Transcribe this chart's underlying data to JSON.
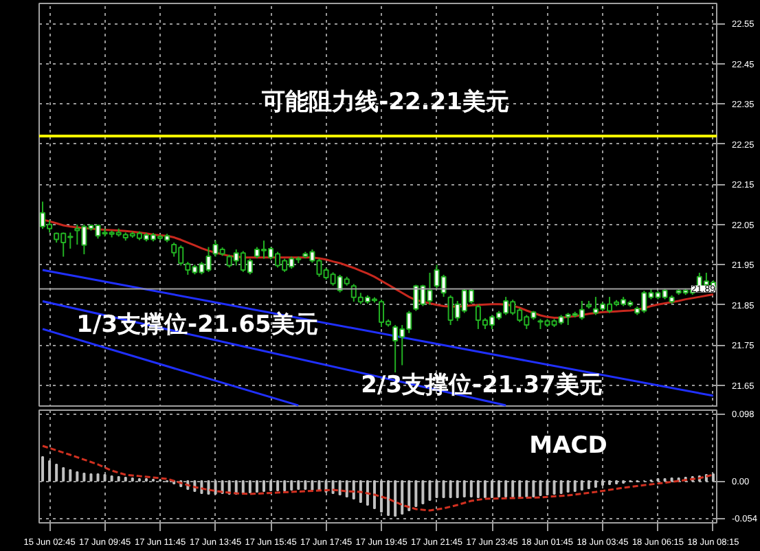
{
  "chart_data": [
    {
      "type": "candlestick",
      "ohlc": [
        [
          22.045,
          22.107,
          22.039,
          22.079
        ],
        [
          22.05,
          22.06,
          22.03,
          22.04
        ],
        [
          22.028,
          22.03,
          22.005,
          22.013
        ],
        [
          22.028,
          22.03,
          21.97,
          22.005
        ],
        [
          22.02,
          22.03,
          21.99,
          22.018
        ],
        [
          22.04,
          22.05,
          22.0,
          22.035
        ],
        [
          21.999,
          22.05,
          21.976,
          22.045
        ],
        [
          22.04,
          22.05,
          22.035,
          22.048
        ],
        [
          22.022,
          22.05,
          22.015,
          22.048
        ],
        [
          22.03,
          22.04,
          22.02,
          22.027
        ],
        [
          22.03,
          22.035,
          22.018,
          22.026
        ],
        [
          22.03,
          22.04,
          22.02,
          22.025
        ],
        [
          22.025,
          22.03,
          22.01,
          22.017
        ],
        [
          22.027,
          22.032,
          22.017,
          22.022
        ],
        [
          22.028,
          22.033,
          22.011,
          22.016
        ],
        [
          22.013,
          22.029,
          22.008,
          22.024
        ],
        [
          22.013,
          22.029,
          22.008,
          22.024
        ],
        [
          22.02,
          22.025,
          22.011,
          22.016
        ],
        [
          22.011,
          22.027,
          22.006,
          22.022
        ],
        [
          22.0,
          22.005,
          21.97,
          21.98
        ],
        [
          21.993,
          21.998,
          21.948,
          21.954
        ],
        [
          21.952,
          21.957,
          21.925,
          21.937
        ],
        [
          21.931,
          21.95,
          21.926,
          21.945
        ],
        [
          21.931,
          21.957,
          21.926,
          21.952
        ],
        [
          21.937,
          21.994,
          21.932,
          21.971
        ],
        [
          21.977,
          22.01,
          21.97,
          22.0
        ],
        [
          21.988,
          21.993,
          21.972,
          21.977
        ],
        [
          21.97,
          21.975,
          21.943,
          21.948
        ],
        [
          21.96,
          21.988,
          21.948,
          21.979
        ],
        [
          21.979,
          21.984,
          21.932,
          21.937
        ],
        [
          21.931,
          21.965,
          21.926,
          21.96
        ],
        [
          21.971,
          21.994,
          21.966,
          21.988
        ],
        [
          21.988,
          22.01,
          21.965,
          21.985
        ],
        [
          21.968,
          21.994,
          21.963,
          21.99
        ],
        [
          21.977,
          21.982,
          21.943,
          21.948
        ],
        [
          21.96,
          21.965,
          21.932,
          21.937
        ],
        [
          21.945,
          21.97,
          21.94,
          21.965
        ],
        [
          21.965,
          21.97,
          21.954,
          21.963
        ],
        [
          21.971,
          21.982,
          21.966,
          21.977
        ],
        [
          21.96,
          21.988,
          21.955,
          21.982
        ],
        [
          21.96,
          21.965,
          21.92,
          21.926
        ],
        [
          21.937,
          21.942,
          21.913,
          21.918
        ],
        [
          21.926,
          21.931,
          21.898,
          21.903
        ],
        [
          21.886,
          21.925,
          21.881,
          21.92
        ],
        [
          21.914,
          21.92,
          21.898,
          21.903
        ],
        [
          21.897,
          21.902,
          21.858,
          21.869
        ],
        [
          21.869,
          21.88,
          21.852,
          21.858
        ],
        [
          21.858,
          21.874,
          21.853,
          21.869
        ],
        [
          21.864,
          21.869,
          21.856,
          21.861
        ],
        [
          21.858,
          21.863,
          21.795,
          21.807
        ],
        [
          21.809,
          21.814,
          21.796,
          21.801
        ],
        [
          21.761,
          21.8,
          21.682,
          21.795
        ],
        [
          21.77,
          21.8,
          21.7,
          21.79
        ],
        [
          21.79,
          21.835,
          21.78,
          21.83
        ],
        [
          21.84,
          21.9,
          21.835,
          21.897
        ],
        [
          21.852,
          21.9,
          21.847,
          21.897
        ],
        [
          21.86,
          21.93,
          21.85,
          21.886
        ],
        [
          21.897,
          21.95,
          21.89,
          21.937
        ],
        [
          21.88,
          21.925,
          21.87,
          21.92
        ],
        [
          21.869,
          21.874,
          21.8,
          21.812
        ],
        [
          21.818,
          21.86,
          21.81,
          21.852
        ],
        [
          21.835,
          21.89,
          21.83,
          21.886
        ],
        [
          21.858,
          21.89,
          21.853,
          21.886
        ],
        [
          21.846,
          21.851,
          21.79,
          21.812
        ],
        [
          21.812,
          21.817,
          21.79,
          21.8
        ],
        [
          21.8,
          21.825,
          21.79,
          21.82
        ],
        [
          21.818,
          21.835,
          21.813,
          21.83
        ],
        [
          21.83,
          21.87,
          21.825,
          21.86
        ],
        [
          21.858,
          21.863,
          21.825,
          21.83
        ],
        [
          21.837,
          21.842,
          21.807,
          21.812
        ],
        [
          21.82,
          21.825,
          21.79,
          21.8
        ],
        [
          21.818,
          21.835,
          21.813,
          21.832
        ],
        [
          21.81,
          21.815,
          21.79,
          21.808
        ],
        [
          21.81,
          21.815,
          21.795,
          21.8
        ],
        [
          21.81,
          21.815,
          21.795,
          21.8
        ],
        [
          21.806,
          21.825,
          21.801,
          21.82
        ],
        [
          21.82,
          21.83,
          21.8,
          21.826
        ],
        [
          21.824,
          21.833,
          21.819,
          21.828
        ],
        [
          21.818,
          21.86,
          21.813,
          21.838
        ],
        [
          21.85,
          21.86,
          21.841,
          21.846
        ],
        [
          21.83,
          21.87,
          21.825,
          21.84
        ],
        [
          21.84,
          21.857,
          21.835,
          21.852
        ],
        [
          21.852,
          21.87,
          21.83,
          21.835
        ],
        [
          21.857,
          21.862,
          21.847,
          21.852
        ],
        [
          21.852,
          21.87,
          21.847,
          21.863
        ],
        [
          21.85,
          21.861,
          21.845,
          21.856
        ],
        [
          21.83,
          21.846,
          21.825,
          21.841
        ],
        [
          21.835,
          21.885,
          21.83,
          21.88
        ],
        [
          21.869,
          21.89,
          21.864,
          21.88
        ],
        [
          21.869,
          21.885,
          21.864,
          21.88
        ],
        [
          21.869,
          21.891,
          21.864,
          21.886
        ],
        [
          21.858,
          21.874,
          21.853,
          21.869
        ],
        [
          21.88,
          21.89,
          21.875,
          21.885
        ],
        [
          21.88,
          21.891,
          21.875,
          21.886
        ],
        [
          21.88,
          21.891,
          21.875,
          21.886
        ],
        [
          21.89,
          21.93,
          21.885,
          21.92
        ],
        [
          21.9,
          21.93,
          21.895,
          21.909
        ],
        [
          21.888,
          21.911,
          21.883,
          21.906
        ]
      ],
      "series": [
        {
          "type": "line",
          "color": "#c8281e",
          "values": [
            22.062,
            22.058,
            22.053,
            22.048,
            22.045,
            22.043,
            22.041,
            22.04,
            22.038,
            22.037,
            22.036,
            22.035,
            22.034,
            22.032,
            22.03,
            22.028,
            22.025,
            22.023,
            22.022,
            22.018,
            22.012,
            22.005,
            21.998,
            21.991,
            21.985,
            21.98,
            21.976,
            21.972,
            21.97,
            21.968,
            21.968,
            21.968,
            21.968,
            21.968,
            21.968,
            21.968,
            21.968,
            21.968,
            21.968,
            21.968,
            21.966,
            21.963,
            21.958,
            21.954,
            21.948,
            21.942,
            21.935,
            21.928,
            21.92,
            21.91,
            21.9,
            21.89,
            21.88,
            21.87,
            21.862,
            21.858,
            21.854,
            21.85,
            21.847,
            21.846,
            21.846,
            21.847,
            21.849,
            21.85,
            21.851,
            21.852,
            21.852,
            21.851,
            21.848,
            21.843,
            21.836,
            21.83,
            21.824,
            21.82,
            21.818,
            21.818,
            21.82,
            21.822,
            21.825,
            21.828,
            21.83,
            21.832,
            21.833,
            21.834,
            21.835,
            21.836,
            21.838,
            21.842,
            21.847,
            21.851,
            21.854,
            21.857,
            21.86,
            21.864,
            21.867,
            21.87,
            21.873,
            21.876
          ]
        },
        {
          "type": "line",
          "color": "#2030ff",
          "values": [
            21.937,
            null,
            null,
            null,
            null,
            null,
            null,
            null,
            null,
            null,
            null,
            null,
            null,
            null,
            null,
            null,
            null,
            null,
            null,
            null,
            null,
            null,
            null,
            null,
            null,
            null,
            null,
            null,
            null,
            null,
            null,
            null,
            null,
            null,
            null,
            null,
            null,
            null,
            null,
            null,
            null,
            null,
            null,
            null,
            null,
            null,
            null,
            null,
            null,
            null,
            null,
            null,
            null,
            null,
            null,
            null,
            null,
            null,
            null,
            null,
            null,
            null,
            null,
            null,
            null,
            null,
            null,
            null,
            null,
            null,
            null,
            null,
            null,
            null,
            null,
            null,
            null,
            null,
            null,
            null,
            null,
            null,
            null,
            null,
            null,
            null,
            null,
            null,
            null,
            null,
            null,
            null,
            null,
            null,
            null,
            null,
            null,
            21.624
          ]
        },
        {
          "type": "line",
          "color": "#2030ff",
          "values": [
            21.859,
            null,
            null,
            null,
            null,
            null,
            null,
            null,
            null,
            null,
            null,
            null,
            null,
            null,
            null,
            null,
            null,
            null,
            null,
            null,
            null,
            null,
            null,
            null,
            null,
            null,
            null,
            null,
            null,
            null,
            null,
            null,
            null,
            null,
            null,
            null,
            null,
            null,
            null,
            null,
            null,
            null,
            null,
            null,
            null,
            null,
            null,
            null,
            null,
            null,
            null,
            null,
            null,
            null,
            null,
            null,
            null,
            null,
            null,
            null,
            null,
            null,
            null,
            null,
            null,
            null,
            null,
            21.6,
            null,
            null,
            null,
            null,
            null,
            null,
            null,
            null,
            null,
            null,
            null,
            null,
            null,
            null,
            null,
            null,
            null,
            null,
            null,
            null,
            null,
            null,
            null,
            null,
            null,
            null,
            null,
            null,
            null,
            null
          ]
        },
        {
          "type": "line",
          "color": "#2030ff",
          "values": [
            21.79,
            null,
            null,
            null,
            null,
            null,
            null,
            null,
            null,
            null,
            null,
            null,
            null,
            null,
            null,
            null,
            null,
            null,
            null,
            null,
            null,
            null,
            null,
            null,
            null,
            null,
            null,
            null,
            null,
            null,
            null,
            null,
            null,
            null,
            null,
            null,
            null,
            21.6,
            null,
            null,
            null,
            null,
            null,
            null,
            null,
            null,
            null,
            null,
            null,
            null,
            null,
            null,
            null,
            null,
            null,
            null,
            null,
            null,
            null,
            null,
            null,
            null,
            null,
            null,
            null,
            null,
            null,
            null,
            null,
            null,
            null,
            null,
            null,
            null,
            null,
            null,
            null,
            null,
            null,
            null,
            null,
            null,
            null,
            null,
            null,
            null,
            null,
            null,
            null,
            null,
            null,
            null,
            null,
            null,
            null,
            null,
            null,
            null
          ]
        }
      ],
      "ylim": [
        21.595,
        22.6
      ],
      "yticks": [
        21.65,
        21.75,
        21.85,
        21.95,
        22.05,
        22.15,
        22.25,
        22.35,
        22.45,
        22.55
      ],
      "grid": true,
      "tick_labels": "y",
      "ref_lines": [
        {
          "axis": "y",
          "value": 22.27,
          "label": "可能阻力线-22.21美元",
          "color": "#ffff00"
        },
        {
          "axis": "y",
          "value": 21.89,
          "label": "21.89",
          "color": "#a0a0a0"
        }
      ],
      "annotations": [
        "1/3支撑位-21.65美元",
        "2/3支撑位-21.37美元"
      ]
    },
    {
      "type": "bar",
      "categories": [
        null,
        "15 Jun 02:45",
        null,
        null,
        null,
        null,
        null,
        null,
        null,
        "17 Jun 09:45",
        null,
        null,
        null,
        null,
        null,
        null,
        null,
        "17 Jun 11:45",
        null,
        null,
        null,
        null,
        null,
        null,
        null,
        "17 Jun 13:45",
        null,
        null,
        null,
        null,
        null,
        null,
        null,
        "17 Jun 15:45",
        null,
        null,
        null,
        null,
        null,
        null,
        null,
        "17 Jun 17:45",
        null,
        null,
        null,
        null,
        null,
        null,
        null,
        "17 Jun 19:45",
        null,
        null,
        null,
        null,
        null,
        null,
        null,
        "17 Jun 21:45",
        null,
        null,
        null,
        null,
        null,
        null,
        null,
        "17 Jun 23:45",
        null,
        null,
        null,
        null,
        null,
        null,
        null,
        "18 Jun 01:45",
        null,
        null,
        null,
        null,
        null,
        null,
        null,
        "18 Jun 03:45",
        null,
        null,
        null,
        null,
        null,
        null,
        null,
        "18 Jun 06:15",
        null,
        null,
        null,
        null,
        null,
        null,
        null,
        "18 Jun 08:15"
      ],
      "series": [
        {
          "type": "bar",
          "color": "#c0c0c0",
          "values": [
            0.035,
            0.029,
            0.024,
            0.019,
            0.016,
            0.013,
            0.011,
            0.01,
            0.01,
            0.009,
            0.007,
            0.006,
            0.005,
            0.004,
            0.003,
            0.003,
            0.002,
            0.001,
            -0.001,
            -0.004,
            -0.008,
            -0.012,
            -0.015,
            -0.018,
            -0.019,
            -0.019,
            -0.018,
            -0.019,
            -0.019,
            -0.018,
            -0.017,
            -0.016,
            -0.015,
            -0.014,
            -0.014,
            -0.014,
            -0.013,
            -0.012,
            -0.012,
            -0.013,
            -0.014,
            -0.016,
            -0.018,
            -0.02,
            -0.023,
            -0.026,
            -0.031,
            -0.035,
            -0.04,
            -0.045,
            -0.05,
            -0.051,
            -0.048,
            -0.043,
            -0.037,
            -0.033,
            -0.028,
            -0.024,
            -0.024,
            -0.024,
            -0.024,
            -0.023,
            -0.023,
            -0.024,
            -0.024,
            -0.024,
            -0.023,
            -0.023,
            -0.023,
            -0.023,
            -0.023,
            -0.023,
            -0.021,
            -0.02,
            -0.019,
            -0.018,
            -0.016,
            -0.015,
            -0.013,
            -0.011,
            -0.009,
            -0.006,
            -0.005,
            -0.004,
            -0.003,
            -0.001,
            -0.001,
            0.0,
            0.001,
            0.003,
            0.003,
            0.004,
            0.004,
            0.005,
            0.006,
            0.007,
            0.009,
            0.01
          ]
        },
        {
          "type": "line",
          "color": "#d03020",
          "line_style": "dashed",
          "values": [
            0.051,
            null,
            null,
            null,
            0.038,
            null,
            null,
            null,
            0.024,
            null,
            0.015,
            null,
            0.009,
            null,
            null,
            null,
            0.005,
            null,
            0.003,
            null,
            -0.003,
            null,
            -0.009,
            null,
            -0.013,
            null,
            -0.016,
            null,
            -0.018,
            null,
            -0.019,
            null,
            null,
            null,
            -0.017,
            null,
            null,
            null,
            -0.015,
            null,
            null,
            null,
            -0.013,
            null,
            -0.015,
            null,
            -0.016,
            null,
            -0.02,
            null,
            -0.026,
            null,
            -0.035,
            null,
            -0.041,
            null,
            -0.043,
            null,
            -0.04,
            null,
            -0.035,
            null,
            -0.029,
            null,
            -0.026,
            null,
            null,
            null,
            -0.025,
            null,
            null,
            null,
            -0.024,
            null,
            null,
            null,
            -0.021,
            null,
            null,
            null,
            -0.016,
            null,
            null,
            null,
            -0.01,
            null,
            null,
            null,
            -0.005,
            null,
            null,
            null,
            0.0,
            null,
            null,
            0.004,
            null,
            0.009
          ]
        }
      ],
      "ylim": [
        -0.061,
        0.103
      ],
      "yticks": [
        {
          "value": -0.054,
          "label": "-0.054"
        },
        {
          "value": 0,
          "label": "0.00"
        },
        0.098
      ],
      "grid": true,
      "annotations": [
        "MACD"
      ]
    }
  ]
}
